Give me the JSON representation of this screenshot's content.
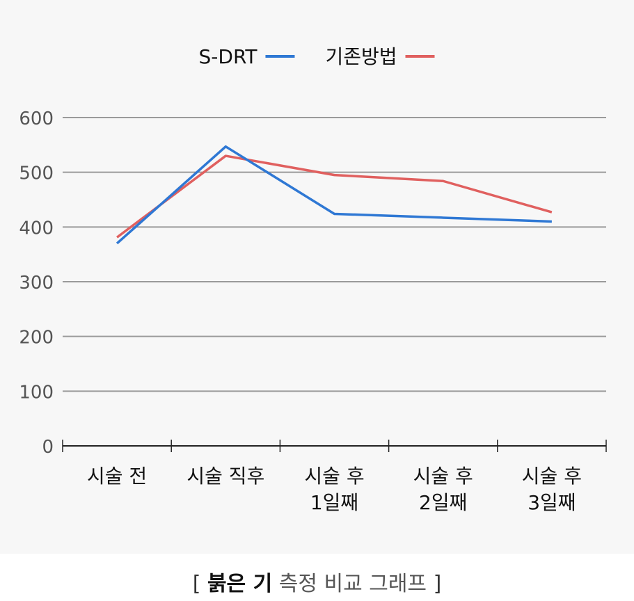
{
  "chart_data": {
    "type": "line",
    "categories": [
      [
        "시술 전"
      ],
      [
        "시술 직후"
      ],
      [
        "시술 후",
        "1일째"
      ],
      [
        "시술 후",
        "2일째"
      ],
      [
        "시술 후",
        "3일째"
      ]
    ],
    "series": [
      {
        "name": "S-DRT",
        "color": "#2f78d4",
        "values": [
          370,
          547,
          424,
          417,
          410
        ]
      },
      {
        "name": "기존방법",
        "color": "#e0605f",
        "values": [
          381,
          530,
          495,
          484,
          427
        ]
      }
    ],
    "y_ticks": [
      0,
      100,
      200,
      300,
      400,
      500,
      600
    ],
    "ylim": [
      0,
      600
    ],
    "grid": true,
    "legend_position": "top"
  },
  "caption": {
    "open_bracket": "[",
    "emphasis": "붉은 기",
    "rest": "측정 비교 그래프",
    "close_bracket": "]"
  }
}
